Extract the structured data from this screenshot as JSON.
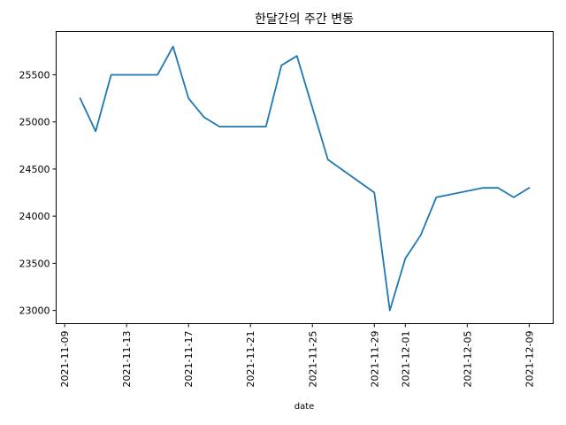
{
  "chart_data": {
    "type": "line",
    "title": "한달간의 주간 변동",
    "xlabel": "date",
    "ylabel": "",
    "ylim": [
      22860,
      25960
    ],
    "xlim": [
      "2021-11-09",
      "2021-12-10"
    ],
    "grid": false,
    "legend": "none",
    "x_ticks": [
      "2021-11-09",
      "2021-11-13",
      "2021-11-17",
      "2021-11-21",
      "2021-11-25",
      "2021-11-29",
      "2021-12-01",
      "2021-12-05",
      "2021-12-09"
    ],
    "y_ticks": [
      23000,
      23500,
      24000,
      24500,
      25000,
      25500
    ],
    "series": [
      {
        "color": "#1f77b4",
        "x": [
          "2021-11-10",
          "2021-11-11",
          "2021-11-12",
          "2021-11-15",
          "2021-11-16",
          "2021-11-17",
          "2021-11-18",
          "2021-11-19",
          "2021-11-22",
          "2021-11-23",
          "2021-11-24",
          "2021-11-26",
          "2021-11-29",
          "2021-11-30",
          "2021-12-01",
          "2021-12-02",
          "2021-12-03",
          "2021-12-06",
          "2021-12-07",
          "2021-12-08",
          "2021-12-09"
        ],
        "values": [
          25250,
          24900,
          25500,
          25500,
          25800,
          25250,
          25050,
          24950,
          24950,
          25600,
          25700,
          24600,
          24250,
          23000,
          23550,
          23800,
          24200,
          24300,
          24300,
          24200,
          24300
        ]
      }
    ]
  }
}
